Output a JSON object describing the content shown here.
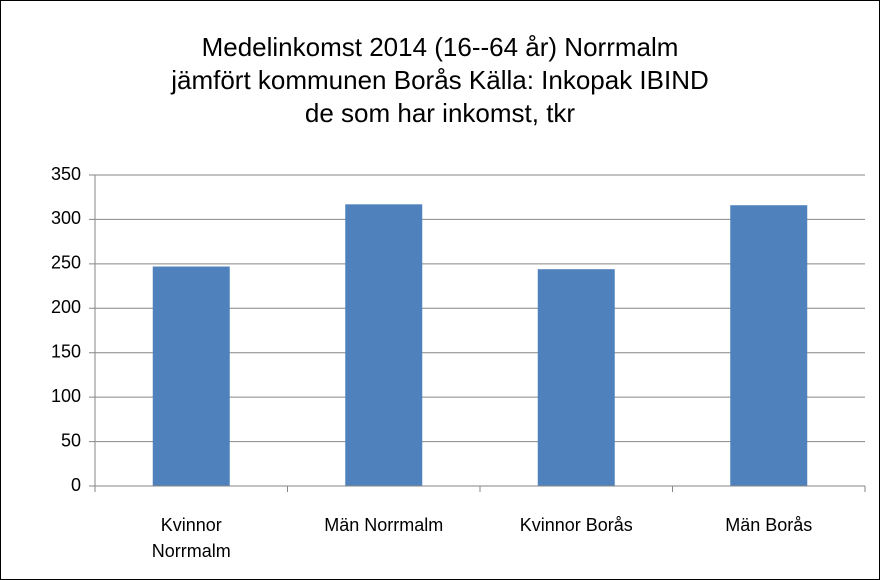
{
  "chart_data": {
    "type": "bar",
    "title": [
      "Medelinkomst 2014 (16--64 år) Norrmalm",
      "jämfört kommunen Borås Källa: Inkopak IBIND",
      "de som har inkomst, tkr"
    ],
    "categories": [
      "Kvinnor Norrmalm",
      "Män Norrmalm",
      "Kvinnor Borås",
      "Män Borås"
    ],
    "values": [
      247,
      317,
      244,
      316
    ],
    "color": "#4f81bd",
    "ylim": [
      0,
      350
    ],
    "yticks": [
      0,
      50,
      100,
      150,
      200,
      250,
      300,
      350
    ],
    "grid": true
  }
}
